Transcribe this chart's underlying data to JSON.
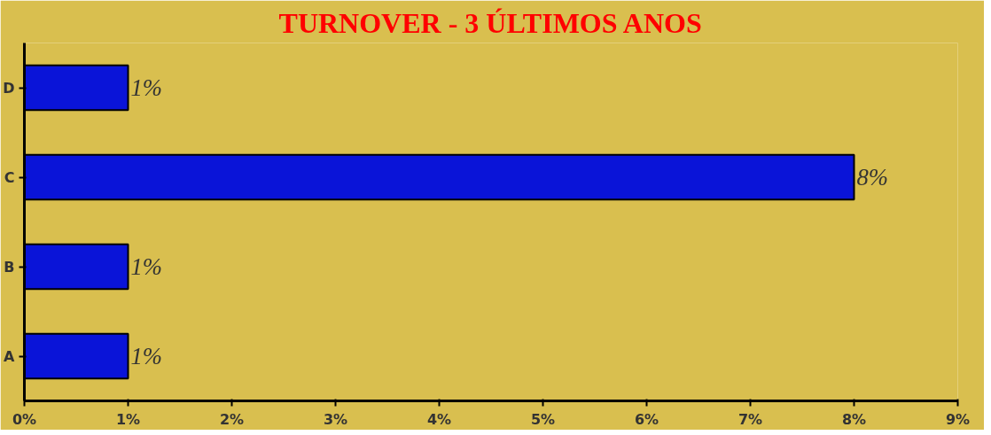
{
  "chart_data": {
    "type": "bar",
    "orientation": "horizontal",
    "title": "TURNOVER - 3 ÚLTIMOS ANOS",
    "categories": [
      "D",
      "C",
      "B",
      "A"
    ],
    "values": [
      1,
      8,
      1,
      1
    ],
    "value_labels": [
      "1%",
      "8%",
      "1%",
      "1%"
    ],
    "color": "#0a14d8",
    "xlim": [
      0,
      9
    ],
    "xticks": [
      {
        "value": 0,
        "label": "0%"
      },
      {
        "value": 1,
        "label": "1%"
      },
      {
        "value": 2,
        "label": "2%"
      },
      {
        "value": 3,
        "label": "3%"
      },
      {
        "value": 4,
        "label": "4%"
      },
      {
        "value": 5,
        "label": "5%"
      },
      {
        "value": 6,
        "label": "6%"
      },
      {
        "value": 7,
        "label": "7%"
      },
      {
        "value": 8,
        "label": "8%"
      },
      {
        "value": 9,
        "label": "9%"
      }
    ],
    "grid": false
  }
}
